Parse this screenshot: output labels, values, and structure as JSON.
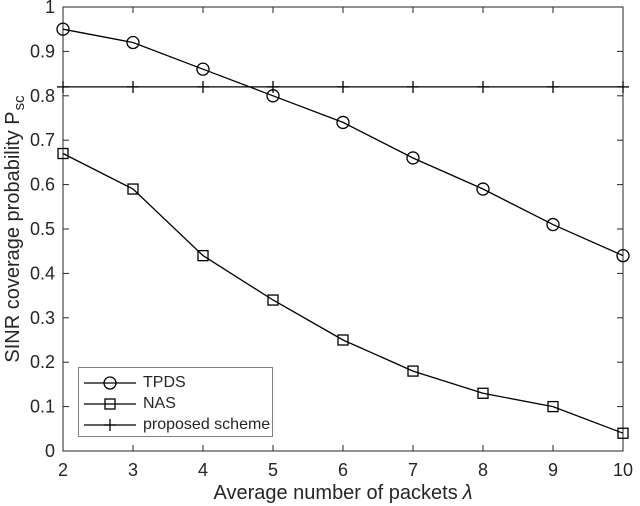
{
  "chart_data": {
    "type": "line",
    "title": "",
    "x": [
      2,
      3,
      4,
      5,
      6,
      7,
      8,
      9,
      10
    ],
    "series": [
      {
        "name": "TPDS",
        "marker": "circle",
        "values": [
          0.95,
          0.92,
          0.86,
          0.8,
          0.74,
          0.66,
          0.59,
          0.51,
          0.44
        ]
      },
      {
        "name": "NAS",
        "marker": "square",
        "values": [
          0.67,
          0.59,
          0.44,
          0.34,
          0.25,
          0.18,
          0.13,
          0.1,
          0.04
        ]
      },
      {
        "name": "proposed scheme",
        "marker": "plus",
        "values": [
          0.82,
          0.82,
          0.82,
          0.82,
          0.82,
          0.82,
          0.82,
          0.82,
          0.82
        ]
      }
    ],
    "xlabel": "Average number of packets λ",
    "xlabel_parts": {
      "text": "Average number of packets",
      "symbol": "λ"
    },
    "ylabel": "SINR coverage probability P_sc",
    "ylabel_parts": {
      "text": "SINR coverage probability P",
      "subscript": "sc"
    },
    "xlim": [
      2,
      10
    ],
    "ylim": [
      0,
      1
    ],
    "xticks": [
      2,
      3,
      4,
      5,
      6,
      7,
      8,
      9,
      10
    ],
    "xtick_labels": [
      "2",
      "3",
      "4",
      "5",
      "6",
      "7",
      "8",
      "9",
      "10"
    ],
    "yticks": [
      0,
      0.1,
      0.2,
      0.3,
      0.4,
      0.5,
      0.6,
      0.7,
      0.8,
      0.9,
      1
    ],
    "ytick_labels": [
      "0",
      "0.1",
      "0.2",
      "0.3",
      "0.4",
      "0.5",
      "0.6",
      "0.7",
      "0.8",
      "0.9",
      "1"
    ],
    "grid": false,
    "legend_position": "lower-left",
    "colors": {
      "line": "#000000",
      "axis": "#262626",
      "tick_text": "#262626",
      "legend_border": "#808080",
      "background": "#ffffff"
    }
  }
}
